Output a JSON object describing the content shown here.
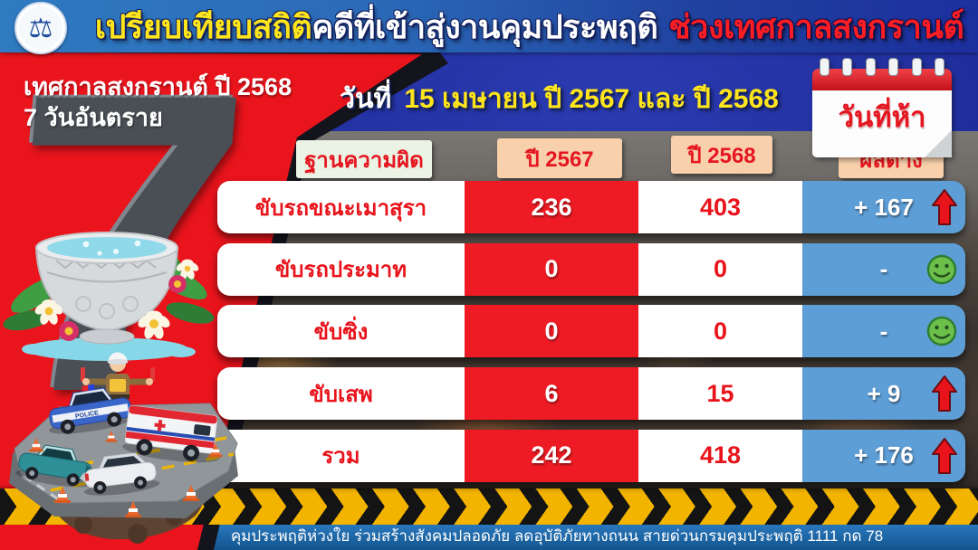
{
  "header": {
    "title_part1": "เปรียบเทียบสถิติ",
    "title_part2": "คดีที่เข้าสู่งานคุมประพฤติ",
    "title_part3": "ช่วงเทศกาลสงกรานต์"
  },
  "subtitle": {
    "prefix": "วันที่",
    "text": "15 เมษายน ปี 2567 และ ปี 2568"
  },
  "sidebar": {
    "line1": "เทศกาลสงกรานต์  ปี 2568",
    "line2": "7 วันอันตราย",
    "big_number": "7"
  },
  "calendar": {
    "label": "วันที่ห้า"
  },
  "table": {
    "headers": [
      "ฐานความผิด",
      "ปี 2567",
      "ปี 2568",
      "ผลต่าง"
    ],
    "rows": [
      {
        "label": "ขับรถขณะเมาสุรา",
        "y2567": "236",
        "y2568": "403",
        "diff": "+ 167",
        "indicator": "up-arrow"
      },
      {
        "label": "ขับรถประมาท",
        "y2567": "0",
        "y2568": "0",
        "diff": "-",
        "indicator": "smiley"
      },
      {
        "label": "ขับซิ่ง",
        "y2567": "0",
        "y2568": "0",
        "diff": "-",
        "indicator": "smiley"
      },
      {
        "label": "ขับเสพ",
        "y2567": "6",
        "y2568": "15",
        "diff": "+ 9",
        "indicator": "up-arrow"
      },
      {
        "label": "รวม",
        "y2567": "242",
        "y2568": "418",
        "diff": "+ 176",
        "indicator": "up-arrow"
      }
    ]
  },
  "footer": {
    "text": "คุมประพฤติห่วงใย ร่วมสร้างสังคมปลอดภัย ลดอุบัติภัยทางถนน  สายด่วนกรมคุมประพฤติ 1111 กด 78"
  },
  "chart_data": {
    "type": "table",
    "title": "เปรียบเทียบสถิติคดีที่เข้าสู่งานคุมประพฤติ ช่วงเทศกาลสงกรานต์",
    "subtitle": "วันที่ 15 เมษายน ปี 2567 และ ปี 2568",
    "period_label": "เทศกาลสงกรานต์ ปี 2568 7 วันอันตราย",
    "day_badge": "วันที่ห้า",
    "columns": [
      "ฐานความผิด",
      "ปี 2567",
      "ปี 2568",
      "ผลต่าง"
    ],
    "rows": [
      [
        "ขับรถขณะเมาสุรา",
        236,
        403,
        "+167"
      ],
      [
        "ขับรถประมาท",
        0,
        0,
        "-"
      ],
      [
        "ขับซิ่ง",
        0,
        0,
        "-"
      ],
      [
        "ขับเสพ",
        6,
        15,
        "+9"
      ],
      [
        "รวม",
        242,
        418,
        "+176"
      ]
    ]
  },
  "colors": {
    "red": "#e8131b",
    "yellow": "#ffe51c",
    "blue_diff_cell": "#5e9ed7",
    "red_cell": "#ee1b24",
    "header_peach": "#f8d0ac",
    "header_mint": "#eaf3e4",
    "hazard_yellow": "#f3b400",
    "footer_blue": "#1a66ad"
  }
}
